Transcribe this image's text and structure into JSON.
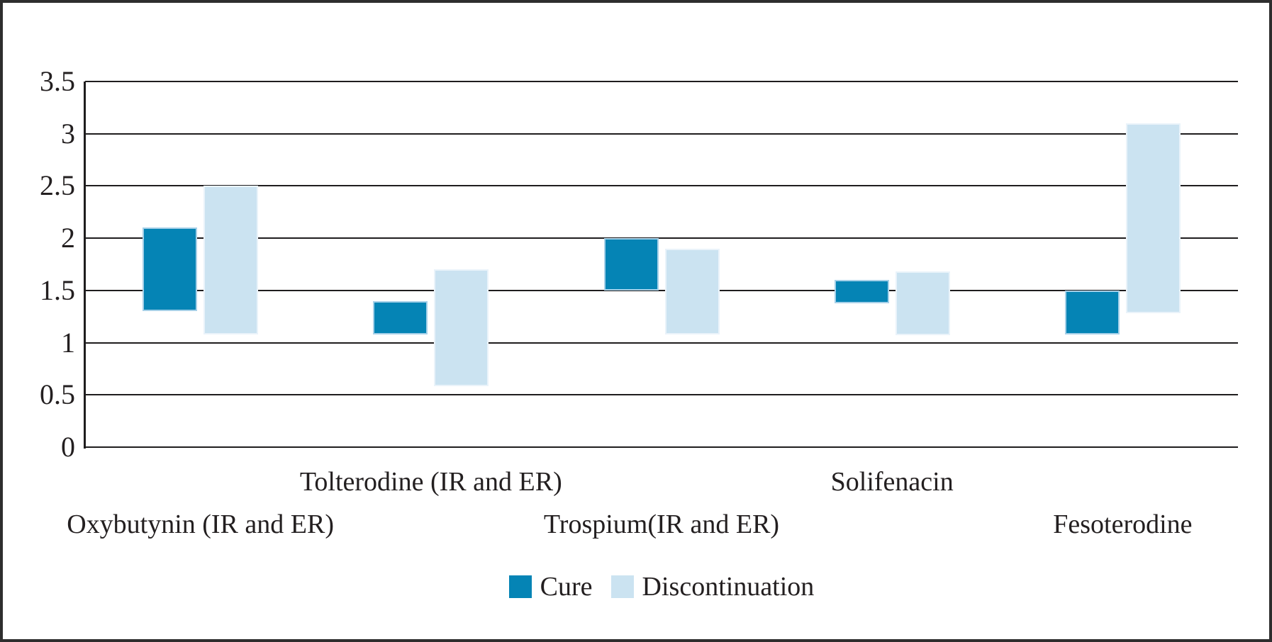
{
  "figure": {
    "background_color": "#ffffff",
    "border_color": "#2e2e2e",
    "text_color": "#231f20",
    "gridline_color": "#1f1d1e"
  },
  "chart_data": {
    "type": "bar",
    "subtype": "floating-range-columns",
    "title": "",
    "xlabel": "",
    "ylabel": "",
    "categories": [
      "Oxybutynin (IR and ER)",
      "Tolterodine (IR and ER)",
      "Trospium(IR and ER)",
      "Solifenacin",
      "Fesoterodine"
    ],
    "category_label_row": [
      "lower",
      "upper",
      "lower",
      "upper",
      "lower"
    ],
    "series": [
      {
        "name": "Cure",
        "color": "#0584B5",
        "border_color": "#A6D0E8",
        "ranges": [
          [
            1.3,
            2.1
          ],
          [
            1.08,
            1.4
          ],
          [
            1.5,
            2.0
          ],
          [
            1.38,
            1.6
          ],
          [
            1.08,
            1.5
          ]
        ]
      },
      {
        "name": "Discontinuation",
        "color": "#CBE3F1",
        "border_color": "#EAF3FA",
        "ranges": [
          [
            1.08,
            2.5
          ],
          [
            0.58,
            1.7
          ],
          [
            1.08,
            1.9
          ],
          [
            1.07,
            1.68
          ],
          [
            1.28,
            3.1
          ]
        ]
      }
    ],
    "y_axis": {
      "min": 0,
      "max": 3.5,
      "step": 0.5,
      "tick_labels_top_to_bottom": [
        "3.5",
        "3",
        "2.5",
        "2",
        "1.5",
        "1",
        "0.5",
        "0"
      ]
    },
    "grid": true,
    "legend_position": "bottom",
    "legend_entries": [
      "Cure",
      "Discontinuation"
    ]
  }
}
